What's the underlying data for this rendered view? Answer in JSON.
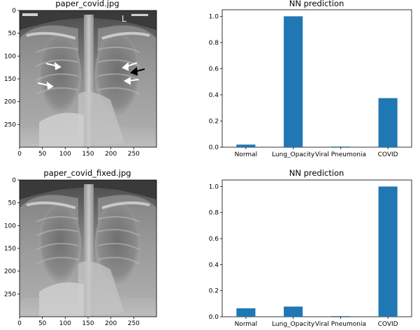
{
  "figure": {
    "xray_panels": [
      {
        "title": "paper_covid.jpg",
        "xticks": [
          "0",
          "50",
          "100",
          "150",
          "200",
          "250"
        ],
        "yticks": [
          "0",
          "50",
          "100",
          "150",
          "200",
          "250"
        ],
        "marker_text": "L"
      },
      {
        "title": "paper_covid_fixed.jpg",
        "xticks": [
          "0",
          "50",
          "100",
          "150",
          "200",
          "250"
        ],
        "yticks": [
          "0",
          "50",
          "100",
          "150",
          "200",
          "250"
        ]
      }
    ]
  },
  "chart_data": [
    {
      "type": "bar",
      "title": "NN prediction",
      "categories": [
        "Normal",
        "Lung_Opacity",
        "Viral Pneumonia",
        "COVID"
      ],
      "values": [
        0.02,
        1.0,
        0.005,
        0.375
      ],
      "ylim": [
        0,
        1.05
      ],
      "yticks": [
        "0.0",
        "0.2",
        "0.4",
        "0.6",
        "0.8",
        "1.0"
      ],
      "color": "#1f77b4"
    },
    {
      "type": "bar",
      "title": "NN prediction",
      "categories": [
        "Normal",
        "Lung_Opacity",
        "Viral Pneumonia",
        "COVID"
      ],
      "values": [
        0.065,
        0.078,
        0.005,
        1.0
      ],
      "ylim": [
        0,
        1.05
      ],
      "yticks": [
        "0.0",
        "0.2",
        "0.4",
        "0.6",
        "0.8",
        "1.0"
      ],
      "color": "#1f77b4"
    }
  ]
}
